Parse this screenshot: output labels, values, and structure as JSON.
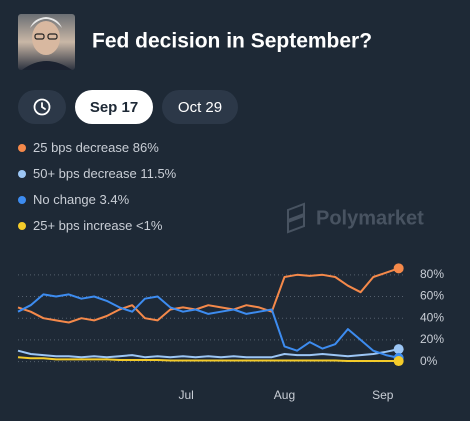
{
  "header": {
    "title": "Fed decision in September?"
  },
  "tabs": [
    "Sep 17",
    "Oct 29"
  ],
  "watermark": "Polymarket",
  "chart_data": {
    "type": "line",
    "x": [
      0,
      4,
      8,
      12,
      16,
      20,
      24,
      28,
      32,
      36,
      40,
      44,
      48,
      52,
      56,
      60,
      64,
      68,
      72,
      76,
      80,
      84,
      88,
      92,
      96,
      100,
      104,
      108,
      112,
      116,
      120
    ],
    "xlim": [
      0,
      122
    ],
    "xticks": [
      {
        "value": 53,
        "label": "Jul"
      },
      {
        "value": 84,
        "label": "Aug"
      },
      {
        "value": 115,
        "label": "Sep"
      }
    ],
    "ylim": [
      -5,
      90
    ],
    "yticks": [
      {
        "value": 0,
        "label": "0%"
      },
      {
        "value": 20,
        "label": "20%"
      },
      {
        "value": 40,
        "label": "40%"
      },
      {
        "value": 60,
        "label": "60%"
      },
      {
        "value": 80,
        "label": "80%"
      }
    ],
    "grid": true,
    "series": [
      {
        "name": "25 bps decrease",
        "current_label": "86%",
        "color": "#f5894a",
        "values": [
          50,
          46,
          40,
          38,
          36,
          40,
          38,
          42,
          48,
          52,
          40,
          38,
          48,
          50,
          48,
          52,
          50,
          48,
          52,
          50,
          46,
          78,
          80,
          79,
          80,
          78,
          70,
          64,
          78,
          82,
          86
        ]
      },
      {
        "name": "50+ bps decrease",
        "current_label": "11.5%",
        "color": "#9cc6f5",
        "values": [
          10,
          7,
          6,
          5,
          5,
          4,
          5,
          4,
          5,
          6,
          4,
          5,
          4,
          5,
          4,
          5,
          4,
          5,
          4,
          4,
          4,
          7,
          6,
          6,
          7,
          6,
          5,
          6,
          7,
          9,
          11.5
        ]
      },
      {
        "name": "No change",
        "current_label": "3.4%",
        "color": "#3d8cf0",
        "values": [
          46,
          52,
          62,
          60,
          62,
          58,
          60,
          56,
          50,
          46,
          58,
          60,
          50,
          46,
          48,
          44,
          46,
          48,
          44,
          46,
          48,
          14,
          10,
          18,
          12,
          16,
          30,
          20,
          10,
          6,
          3.4
        ]
      },
      {
        "name": "25+ bps increase",
        "current_label": "<1%",
        "color": "#f4cb2a",
        "values": [
          4,
          3,
          3,
          2,
          2,
          2,
          2,
          2,
          1.5,
          1.5,
          1.5,
          1.5,
          1,
          1,
          1,
          1,
          1,
          1,
          1,
          1,
          1,
          1,
          1,
          1,
          1,
          1,
          0.5,
          0.5,
          0.5,
          0.5,
          0.5
        ]
      }
    ]
  }
}
